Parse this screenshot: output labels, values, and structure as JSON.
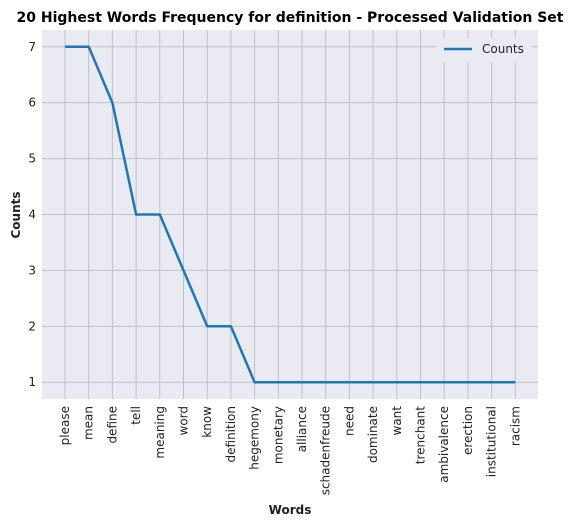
{
  "chart_data": {
    "type": "line",
    "title": "20 Highest Words Frequency for definition - Processed Validation Set",
    "xlabel": "Words",
    "ylabel": "Counts",
    "categories": [
      "please",
      "mean",
      "define",
      "tell",
      "meaning",
      "word",
      "know",
      "definition",
      "hegemony",
      "monetary",
      "alliance",
      "schadenfreude",
      "need",
      "dominate",
      "want",
      "trenchant",
      "ambivalence",
      "erection",
      "institutional",
      "racism"
    ],
    "series": [
      {
        "name": "Counts",
        "values": [
          7,
          7,
          6,
          4,
          4,
          3,
          2,
          2,
          1,
          1,
          1,
          1,
          1,
          1,
          1,
          1,
          1,
          1,
          1,
          1
        ]
      }
    ],
    "ylim": [
      0.7,
      7.3
    ],
    "yticks": [
      1,
      2,
      3,
      4,
      5,
      6,
      7
    ],
    "grid": true,
    "legend": "top-right",
    "colors": {
      "line": "#1f77b4",
      "background": "#eaeaf2",
      "grid": "#c0c0c8"
    }
  }
}
